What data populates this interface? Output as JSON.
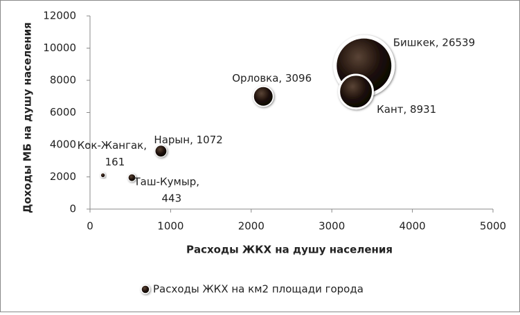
{
  "chart_data": {
    "type": "bubble",
    "x_label": "Расходы ЖКХ на душу населения",
    "y_label": "Доходы МБ на душу населения",
    "xlim": [
      0,
      5000
    ],
    "xticks": [
      0,
      1000,
      2000,
      3000,
      4000,
      5000
    ],
    "ylim": [
      0,
      12000
    ],
    "yticks": [
      0,
      2000,
      4000,
      6000,
      8000,
      10000,
      12000
    ],
    "series": [
      {
        "name": "Расходы ЖКХ на км2 площади города",
        "color": "#2a1a12",
        "x": [
          3400,
          3300,
          2150,
          880,
          520,
          160
        ],
        "values": [
          8900,
          7300,
          7000,
          3600,
          1950,
          2100
        ],
        "sizes": [
          26539,
          8931,
          3096,
          1072,
          443,
          161
        ],
        "labels": [
          "Бишкек, 26539",
          "Кант, 8931",
          "Орловка, 3096",
          "Нарын, 1072",
          "Таш-Кумыр, 443",
          "Кок-Жангак, 161"
        ]
      }
    ]
  }
}
